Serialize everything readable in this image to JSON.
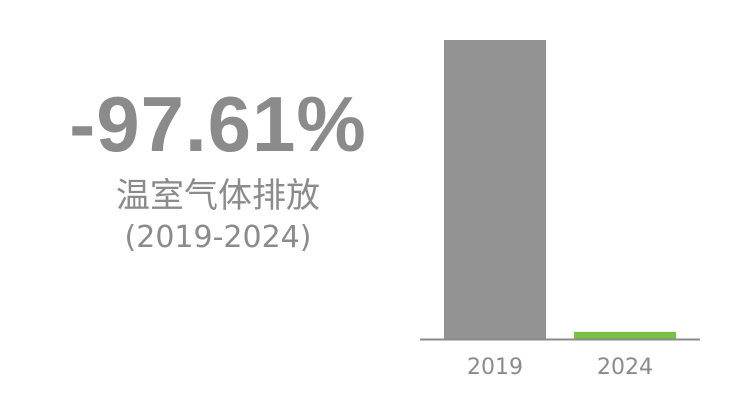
{
  "headline": {
    "value": "-97.61%",
    "label": "温室气体排放",
    "period": "(2019-2024)"
  },
  "colors": {
    "text": "#8b8b8b",
    "bar_2019": "#939393",
    "bar_2024": "#7ac143",
    "axis": "#8b8b8b"
  },
  "chart_data": {
    "type": "bar",
    "categories": [
      "2019",
      "2024"
    ],
    "values": [
      100,
      2.39
    ],
    "title": "",
    "xlabel": "",
    "ylabel": "",
    "ylim": [
      0,
      100
    ],
    "grid": false,
    "legend": "none"
  }
}
